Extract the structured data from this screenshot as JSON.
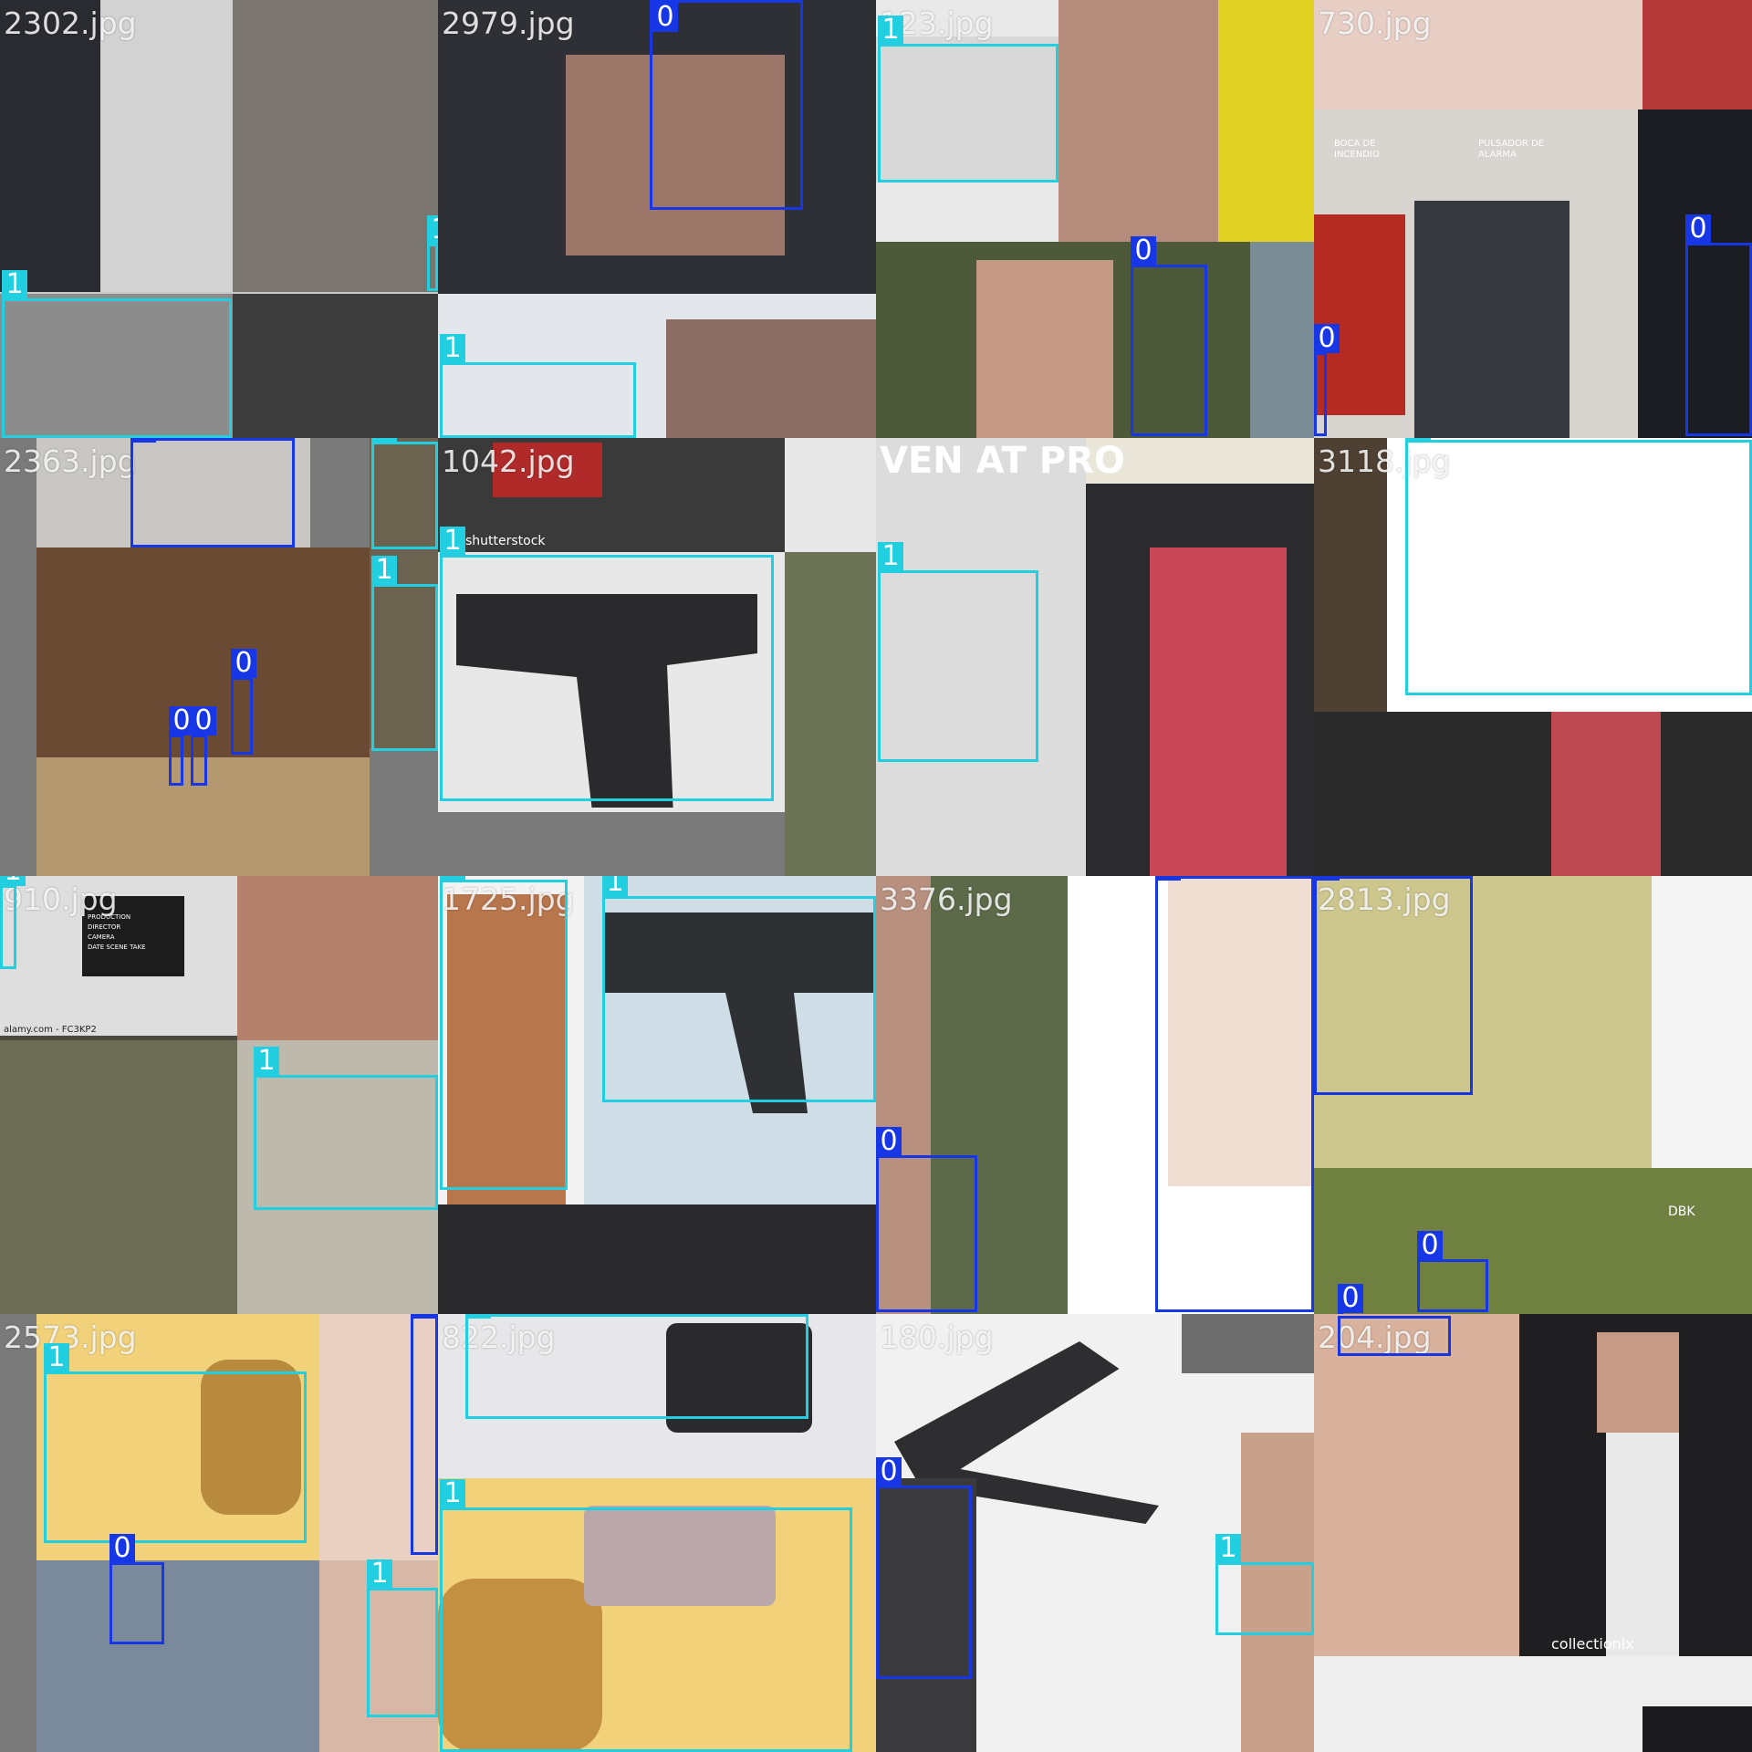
{
  "mosaic": {
    "tiles": [
      {
        "filename": "2302.jpg",
        "labels": [
          "1",
          "1"
        ]
      },
      {
        "filename": "2979.jpg",
        "labels": [
          "0",
          "1"
        ]
      },
      {
        "filename": "123.jpg",
        "labels": [
          "1",
          "0"
        ]
      },
      {
        "filename": "730.jpg",
        "labels": [
          "0",
          "0"
        ]
      },
      {
        "filename": "2363.jpg",
        "labels": [
          "0",
          "1",
          "1",
          "0",
          "0",
          "0"
        ]
      },
      {
        "filename": "1042.jpg",
        "labels": [
          "1"
        ]
      },
      {
        "filename": "",
        "labels": [
          "1"
        ]
      },
      {
        "filename": "3118.jpg",
        "labels": [
          "1"
        ]
      },
      {
        "filename": "910.jpg",
        "labels": [
          "1",
          "1"
        ]
      },
      {
        "filename": "1725.jpg",
        "labels": [
          "1",
          "1"
        ]
      },
      {
        "filename": "3376.jpg",
        "labels": [
          "0",
          "0"
        ]
      },
      {
        "filename": "2813.jpg",
        "labels": [
          "0",
          "0",
          "0"
        ]
      },
      {
        "filename": "2573.jpg",
        "labels": [
          "1",
          "0",
          "0",
          "1"
        ]
      },
      {
        "filename": "822.jpg",
        "labels": [
          "1",
          "1"
        ]
      },
      {
        "filename": "180.jpg",
        "labels": [
          "0",
          "1"
        ]
      },
      {
        "filename": "204.jpg",
        "labels": []
      }
    ],
    "scene_text": {
      "shutterstock": "shutterstock",
      "alamy": "alamy.com - FC3KP2",
      "clapper": [
        "PRODUCTION",
        "DIRECTOR",
        "CAMERA",
        "DATE   SCENE   TAKE"
      ],
      "banner": "VEN AT PRO",
      "dbk": "DBK",
      "collection": "collectionix",
      "sign_left": "BOCA DE INCENDIO",
      "sign_right": "PULSADOR DE ALARMA"
    },
    "colors": {
      "class_0": "#1736e6",
      "class_1": "#22cfe0"
    }
  }
}
